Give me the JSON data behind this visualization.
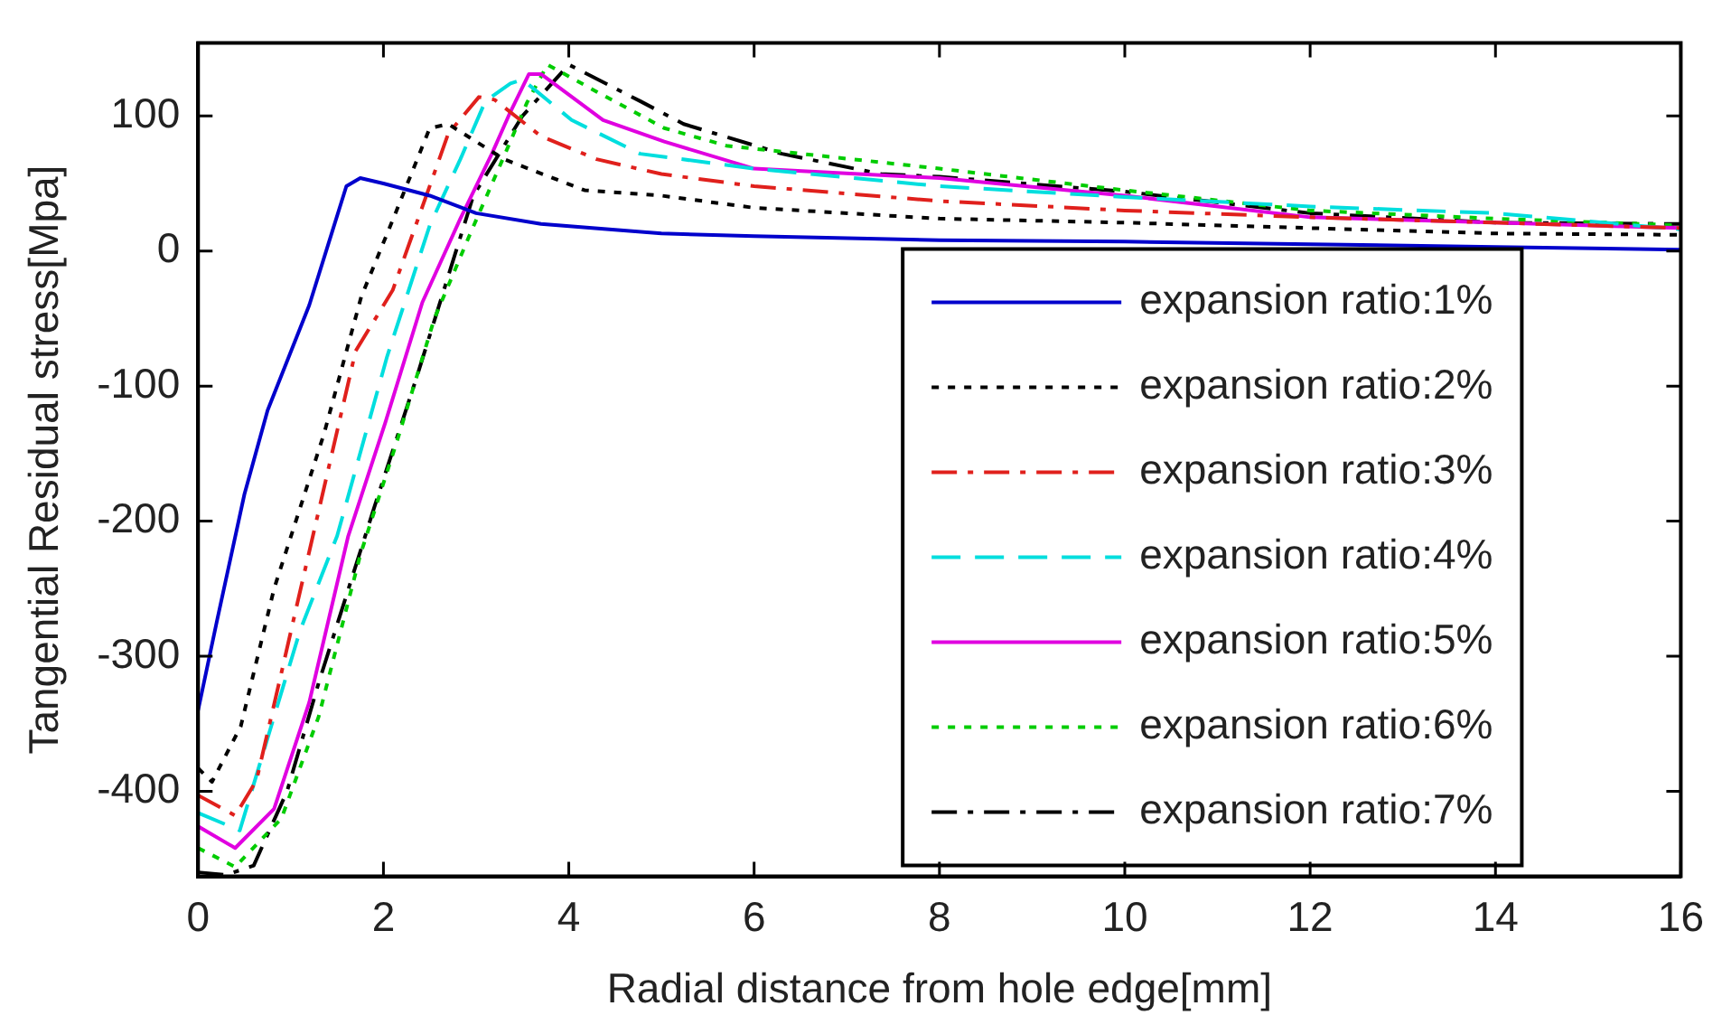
{
  "chart_data": {
    "type": "line",
    "xlabel": "Radial distance from hole edge[mm]",
    "ylabel": "Tangential Residual stress[Mpa]",
    "xlim": [
      0,
      16
    ],
    "xticks": [
      0,
      2,
      4,
      6,
      8,
      10,
      12,
      14,
      16
    ],
    "ylim": [
      -463,
      154
    ],
    "yticks": [
      -400,
      -300,
      -200,
      -100,
      0,
      100
    ],
    "grid": false,
    "legend": "bottom right",
    "marker": "none",
    "series": [
      {
        "name": "expansion ratio:1%",
        "color": "#0000cc",
        "line_style": "solid",
        "x": [
          0,
          0.2,
          0.5,
          0.75,
          1.2,
          1.6,
          1.75,
          2,
          2.5,
          3,
          3.7,
          5,
          6,
          8,
          10,
          12,
          14,
          16
        ],
        "values": [
          -340,
          -275,
          -180,
          -118,
          -40,
          48,
          54,
          50,
          41,
          28,
          20,
          13,
          11,
          8,
          7,
          5,
          3,
          1
        ]
      },
      {
        "name": "expansion ratio:2%",
        "color": "#000000",
        "line_style": "dotted",
        "x": [
          0,
          0.15,
          0.46,
          0.82,
          1.36,
          1.76,
          2.13,
          2.5,
          2.7,
          3.3,
          4.17,
          5,
          6,
          8,
          10,
          12,
          14,
          16
        ],
        "values": [
          -383,
          -393,
          -352,
          -250,
          -135,
          -34,
          28,
          91,
          94,
          68,
          45,
          41,
          32,
          24,
          21,
          17,
          13,
          12
        ]
      },
      {
        "name": "expansion ratio:3%",
        "color": "#e0201c",
        "line_style": "dashdot",
        "x": [
          0,
          0.4,
          0.63,
          0.9,
          1.06,
          1.7,
          2.1,
          2.53,
          2.7,
          3.03,
          3.2,
          3.7,
          4.3,
          5,
          6,
          8,
          10,
          12,
          14,
          16
        ],
        "values": [
          -403,
          -418,
          -392,
          -312,
          -264,
          -74,
          -29,
          54,
          87,
          114,
          112,
          85,
          68,
          57,
          48,
          37,
          30,
          25,
          21,
          17
        ]
      },
      {
        "name": "expansion ratio:4%",
        "color": "#00dede",
        "line_style": "dashed",
        "x": [
          0,
          0.45,
          1.1,
          1.5,
          2.04,
          2.5,
          2.83,
          3.1,
          3.37,
          3.5,
          4.03,
          4.77,
          6,
          8,
          10,
          12,
          14,
          16
        ],
        "values": [
          -416,
          -429,
          -281,
          -211,
          -78,
          19,
          68,
          111,
          124,
          127,
          97,
          72,
          61,
          48,
          40,
          33,
          28,
          16
        ]
      },
      {
        "name": "expansion ratio:5%",
        "color": "#e000e0",
        "line_style": "solid",
        "x": [
          0,
          0.4,
          0.82,
          1.2,
          1.62,
          2.02,
          2.42,
          2.83,
          3.17,
          3.37,
          3.57,
          3.7,
          4.37,
          5.03,
          6,
          8,
          10,
          12,
          14,
          16
        ],
        "values": [
          -426,
          -442,
          -413,
          -334,
          -211,
          -127,
          -38,
          24,
          72,
          103,
          131,
          131,
          97,
          81,
          61,
          54,
          41,
          25,
          21,
          17
        ]
      },
      {
        "name": "expansion ratio:6%",
        "color": "#00cc00",
        "line_style": "dotted",
        "x": [
          0,
          0.4,
          0.9,
          1.3,
          1.75,
          2.15,
          2.55,
          2.95,
          3.3,
          3.55,
          3.77,
          4.3,
          5.03,
          5.7,
          8,
          10,
          12,
          14,
          16
        ],
        "values": [
          -442,
          -456,
          -420,
          -345,
          -225,
          -140,
          -50,
          15,
          70,
          110,
          138,
          118,
          91,
          78,
          61,
          45,
          30,
          24,
          19
        ]
      },
      {
        "name": "expansion ratio:7%",
        "color": "#000000",
        "line_style": "dashdot",
        "x": [
          0,
          0.3,
          0.6,
          0.96,
          1.3,
          1.9,
          2.37,
          2.77,
          2.97,
          3.5,
          4,
          4.77,
          5.24,
          6.3,
          7.37,
          8,
          10,
          12,
          14,
          16
        ],
        "values": [
          -460,
          -462,
          -455,
          -400,
          -320,
          -190,
          -91,
          -3,
          41,
          100,
          138,
          111,
          94,
          72,
          57,
          55,
          44,
          28,
          21,
          20
        ]
      }
    ]
  }
}
